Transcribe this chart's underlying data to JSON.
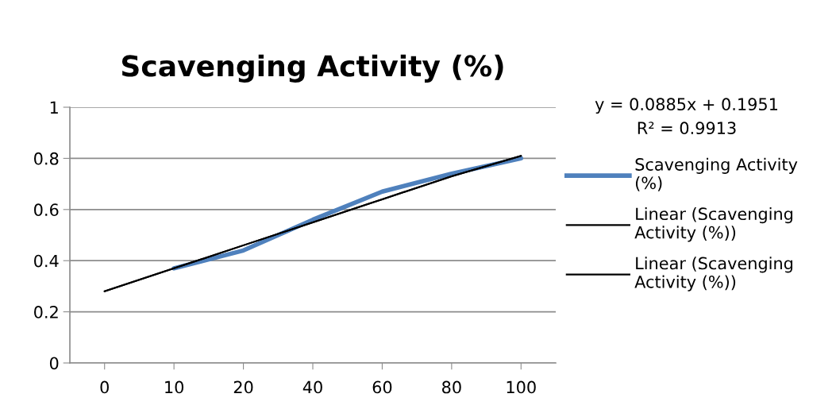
{
  "chart_data": {
    "type": "line",
    "title": "Scavenging Activity (%)",
    "categories": [
      "0",
      "10",
      "20",
      "40",
      "60",
      "80",
      "100"
    ],
    "series": [
      {
        "name": "Scavenging Activity (%)",
        "color": "#4f81bd",
        "values": [
          null,
          0.37,
          0.44,
          0.56,
          0.67,
          0.74,
          0.8
        ]
      },
      {
        "name": "Linear (Scavenging Activity (%))",
        "color": "#000000",
        "values": [
          0.28,
          0.37,
          0.46,
          0.55,
          0.64,
          0.73,
          0.81
        ]
      },
      {
        "name": "Linear (Scavenging Activity (%))",
        "color": "#000000",
        "values": [
          0.28,
          0.37,
          0.46,
          0.55,
          0.64,
          0.73,
          0.81
        ]
      }
    ],
    "annotations": [
      "y = 0.0885x + 0.1951",
      "R² = 0.9913"
    ],
    "ylim": [
      0,
      1
    ],
    "yticks": [
      0,
      0.2,
      0.4,
      0.6,
      0.8,
      1
    ],
    "grid": "y",
    "legend": "right",
    "marker": "none",
    "line_style": "solid"
  }
}
